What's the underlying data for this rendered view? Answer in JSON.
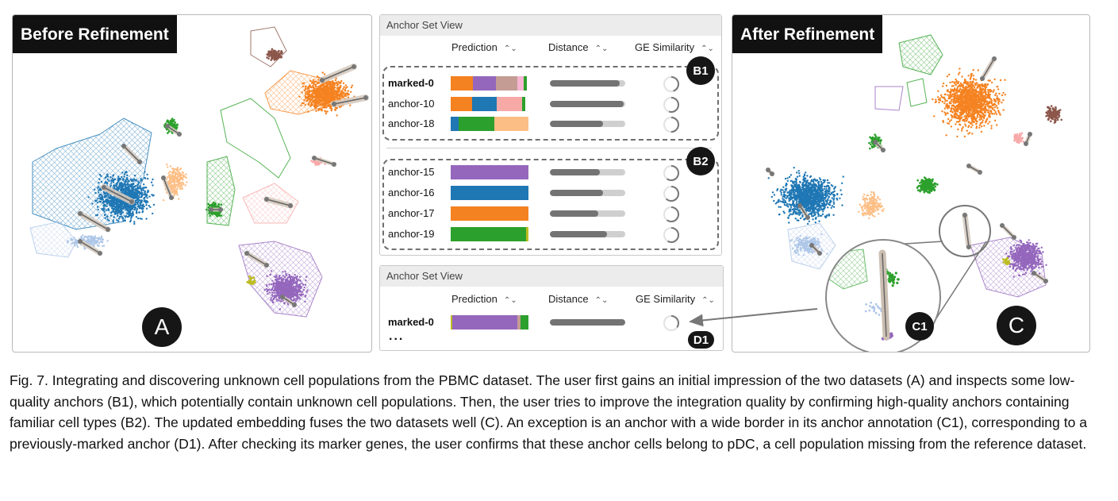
{
  "panel_a": {
    "title": "Before Refinement",
    "badge": "A"
  },
  "panel_c": {
    "title": "After Refinement",
    "badge": "C",
    "inset_badge": "C1"
  },
  "colors": {
    "orange": "#f58220",
    "purple": "#9467bd",
    "blue": "#1f77b4",
    "green": "#2ca02c",
    "brown": "#8c564b",
    "pink": "#f7a9a8",
    "peach": "#fdbe85",
    "lightblue": "#aec7e8",
    "olive": "#bcbd22",
    "tan": "#c49c94",
    "lightpink": "#f7b6d2"
  },
  "top_view": {
    "title": "Anchor Set View",
    "columns": {
      "prediction": "Prediction",
      "distance": "Distance",
      "similarity": "GE Similarity"
    },
    "groups": [
      {
        "badge": "B1",
        "rows": [
          {
            "label": "marked-0",
            "bold": true,
            "prediction": [
              {
                "c": "#f58220",
                "w": 0.29
              },
              {
                "c": "#9467bd",
                "w": 0.29
              },
              {
                "c": "#c49c94",
                "w": 0.28
              },
              {
                "c": "#f7b6d2",
                "w": 0.08
              },
              {
                "c": "#2ca02c",
                "w": 0.04
              }
            ],
            "distance": 0.93,
            "similarity": 0.45
          },
          {
            "label": "anchor-10",
            "bold": false,
            "prediction": [
              {
                "c": "#f58220",
                "w": 0.28
              },
              {
                "c": "#1f77b4",
                "w": 0.31
              },
              {
                "c": "#f7a9a8",
                "w": 0.33
              },
              {
                "c": "#2ca02c",
                "w": 0.04
              }
            ],
            "distance": 0.98,
            "similarity": 0.55
          },
          {
            "label": "anchor-18",
            "bold": false,
            "prediction": [
              {
                "c": "#1f77b4",
                "w": 0.1
              },
              {
                "c": "#2ca02c",
                "w": 0.46
              },
              {
                "c": "#fdbe85",
                "w": 0.44
              }
            ],
            "distance": 0.7,
            "similarity": 0.5
          }
        ]
      },
      {
        "badge": "B2",
        "rows": [
          {
            "label": "anchor-15",
            "bold": false,
            "prediction": [
              {
                "c": "#9467bd",
                "w": 1.0
              }
            ],
            "distance": 0.66,
            "similarity": 0.6
          },
          {
            "label": "anchor-16",
            "bold": false,
            "prediction": [
              {
                "c": "#1f77b4",
                "w": 1.0
              }
            ],
            "distance": 0.7,
            "similarity": 0.62
          },
          {
            "label": "anchor-17",
            "bold": false,
            "prediction": [
              {
                "c": "#f58220",
                "w": 1.0
              }
            ],
            "distance": 0.64,
            "similarity": 0.6
          },
          {
            "label": "anchor-19",
            "bold": false,
            "prediction": [
              {
                "c": "#2ca02c",
                "w": 0.97
              },
              {
                "c": "#bcbd22",
                "w": 0.03
              }
            ],
            "distance": 0.76,
            "similarity": 0.58
          }
        ]
      }
    ]
  },
  "bottom_view": {
    "title": "Anchor Set View",
    "columns": {
      "prediction": "Prediction",
      "distance": "Distance",
      "similarity": "GE Similarity"
    },
    "row": {
      "label": "marked-0",
      "bold": true,
      "prediction": [
        {
          "c": "#bcbd22",
          "w": 0.02
        },
        {
          "c": "#9467bd",
          "w": 0.84
        },
        {
          "c": "#c49c94",
          "w": 0.04
        },
        {
          "c": "#2ca02c",
          "w": 0.1
        }
      ],
      "distance": 1.0,
      "similarity": 0.35
    },
    "ellipsis": "...",
    "badge": "D1"
  },
  "caption": "Fig. 7. Integrating and discovering unknown cell populations from the PBMC dataset. The user first gains an initial impression of the two datasets (A) and inspects some low-quality anchors (B1), which potentially contain unknown cell populations. Then, the user tries to improve the integration quality by confirming high-quality anchors containing familiar cell types (B2). The updated embedding fuses the two datasets well (C). An exception is an anchor with a wide border in its anchor annotation (C1), corresponding to a previously-marked anchor (D1). After checking its marker genes, the user confirms that these anchor cells belong to pDC, a cell population missing from the reference dataset."
}
